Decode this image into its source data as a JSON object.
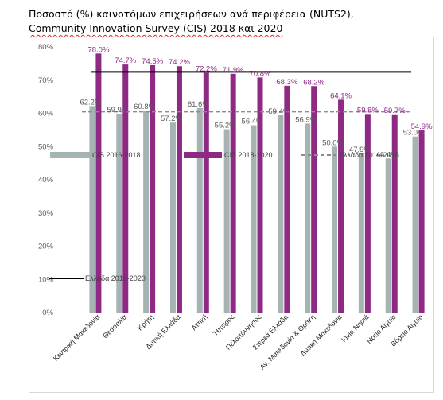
{
  "title": {
    "line1": "Ποσοστό (%) καινοτόμων επιχειρήσεων ανά περιφέρεια (NUTS2),",
    "line2": "Community Innovation Survey (CIS) 2018 και 2020"
  },
  "chart_data": {
    "type": "bar",
    "title": "Ποσοστό (%) καινοτόμων επιχειρήσεων ανά περιφέρεια (NUTS2), Community Innovation Survey (CIS) 2018 και 2020",
    "ylim": [
      0,
      80
    ],
    "yticks": [
      "0%",
      "10%",
      "20%",
      "30%",
      "40%",
      "50%",
      "60%",
      "70%",
      "80%"
    ],
    "grid": false,
    "categories": [
      "Κεντρική Μακεδονία",
      "Θεσσαλία",
      "Κρήτη",
      "Δυτική Ελλάδα",
      "Αττική",
      "Ήπειρος",
      "Πελοπόννησος",
      "Στερεά Ελλάδα",
      "Αν. Μακεδονία & Θράκη",
      "Δυτική Μακεδονία",
      "Ιόνια Νησιά",
      "Νότιο Αιγαίο",
      "Βόρειο Αιγαίο"
    ],
    "series": [
      {
        "name": "CIS 2016-2018",
        "color": "#a5b3b3",
        "values": [
          62.2,
          59.9,
          60.8,
          57.2,
          61.6,
          55.2,
          56.4,
          59.4,
          56.9,
          50.0,
          47.9,
          46.4,
          53.0
        ],
        "labels": [
          "62.2%",
          "59.9%",
          "60.8%",
          "57.2%",
          "61.6%",
          "55.2%",
          "56.4%",
          "59.4%",
          "56.9%",
          "50.0%",
          "47.9%",
          "46.4%",
          "53.0%"
        ]
      },
      {
        "name": "CIS 2018-2020",
        "color": "#8e2a84",
        "values": [
          78.0,
          74.7,
          74.5,
          74.2,
          72.2,
          71.9,
          70.8,
          68.3,
          68.2,
          64.1,
          59.8,
          59.7,
          54.9
        ],
        "labels": [
          "78.0%",
          "74.7%",
          "74.5%",
          "74.2%",
          "72.2%",
          "71.9%",
          "70.8%",
          "68.3%",
          "68.2%",
          "64.1%",
          "59.8%",
          "59.7%",
          "54.9%"
        ]
      }
    ],
    "reference_lines": [
      {
        "name": "Ελλάδα 2016-2018",
        "value": 60.5,
        "color": "#8c8c8c",
        "style": "dashed"
      },
      {
        "name": "Ελλάδα 2018-2020",
        "value": 72.5,
        "color": "#000000",
        "style": "solid"
      }
    ]
  }
}
